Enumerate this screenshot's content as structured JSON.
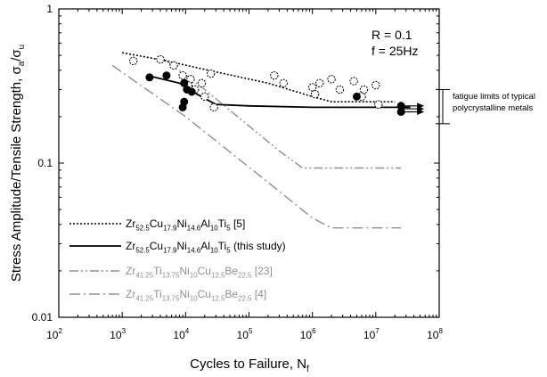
{
  "chart_data": {
    "type": "scatter",
    "xlabel": "Cycles to Failure, N",
    "xlabel_sub": "f",
    "ylabel_parts": [
      {
        "t": "Stress Amplitude/Tensile Strength, σ"
      },
      {
        "t": "a",
        "sub": true
      },
      {
        "t": "/σ"
      },
      {
        "t": "u",
        "sub": true
      }
    ],
    "xscale": "log",
    "yscale": "log",
    "xlim": [
      100,
      100000000
    ],
    "ylim": [
      0.01,
      1
    ],
    "x_ticks": [
      {
        "value": 100,
        "base": "10",
        "exp": "2"
      },
      {
        "value": 1000,
        "base": "10",
        "exp": "3"
      },
      {
        "value": 10000,
        "base": "10",
        "exp": "4"
      },
      {
        "value": 100000,
        "base": "10",
        "exp": "5"
      },
      {
        "value": 1000000,
        "base": "10",
        "exp": "6"
      },
      {
        "value": 10000000,
        "base": "10",
        "exp": "7"
      },
      {
        "value": 100000000,
        "base": "10",
        "exp": "8"
      }
    ],
    "y_ticks": [
      {
        "value": 0.01,
        "label": "0.01"
      },
      {
        "value": 0.1,
        "label": "0.1"
      },
      {
        "value": 1,
        "label": "1"
      }
    ],
    "conditions": [
      "R = 0.1",
      "f = 25Hz"
    ],
    "annotation": {
      "lines": [
        "fatigue limits of typical",
        "polycrystalline metals"
      ],
      "range": [
        0.18,
        0.3
      ]
    },
    "series": [
      {
        "id": "prior",
        "legend": [
          {
            "t": "Zr"
          },
          {
            "t": "52.5",
            "sub": true
          },
          {
            "t": "Cu"
          },
          {
            "t": "17.9",
            "sub": true
          },
          {
            "t": "Ni"
          },
          {
            "t": "14.6",
            "sub": true
          },
          {
            "t": "Al"
          },
          {
            "t": "10",
            "sub": true
          },
          {
            "t": "Ti"
          },
          {
            "t": "5",
            "sub": true
          },
          {
            "t": " [5]"
          }
        ],
        "color": "#000000",
        "style": "dotted",
        "marker": "open-circle",
        "curve": [
          [
            1000,
            0.52
          ],
          [
            5000,
            0.46
          ],
          [
            30000,
            0.39
          ],
          [
            200000,
            0.33
          ],
          [
            1000000,
            0.27
          ],
          [
            2000000,
            0.25
          ],
          [
            20000000,
            0.25
          ]
        ],
        "points": [
          [
            1500,
            0.46
          ],
          [
            4000,
            0.47
          ],
          [
            6500,
            0.43
          ],
          [
            9000,
            0.37
          ],
          [
            12000,
            0.35
          ],
          [
            11000,
            0.32
          ],
          [
            14000,
            0.3
          ],
          [
            18000,
            0.33
          ],
          [
            25000,
            0.38
          ],
          [
            20000,
            0.27
          ],
          [
            28000,
            0.23
          ],
          [
            250000,
            0.37
          ],
          [
            350000,
            0.33
          ],
          [
            1000000,
            0.31
          ],
          [
            1300000,
            0.33
          ],
          [
            1100000,
            0.28
          ],
          [
            2000000,
            0.35
          ],
          [
            2700000,
            0.3
          ],
          [
            4500000,
            0.34
          ],
          [
            6500000,
            0.3
          ],
          [
            6000000,
            0.27
          ],
          [
            10000000,
            0.32
          ],
          [
            11000000,
            0.24
          ]
        ]
      },
      {
        "id": "this-study",
        "legend": [
          {
            "t": "Zr"
          },
          {
            "t": "52.5",
            "sub": true
          },
          {
            "t": "Cu"
          },
          {
            "t": "17.9",
            "sub": true
          },
          {
            "t": "Ni"
          },
          {
            "t": "14.6",
            "sub": true
          },
          {
            "t": "Al"
          },
          {
            "t": "10",
            "sub": true
          },
          {
            "t": "Ti"
          },
          {
            "t": "5",
            "sub": true
          },
          {
            "t": " (this study)"
          }
        ],
        "color": "#000000",
        "style": "solid",
        "marker": "filled-circle",
        "curve": [
          [
            2500,
            0.37
          ],
          [
            8000,
            0.33
          ],
          [
            15000,
            0.28
          ],
          [
            30000,
            0.24
          ],
          [
            100000,
            0.235
          ],
          [
            1000000,
            0.23
          ],
          [
            35000000,
            0.23
          ]
        ],
        "points": [
          [
            2700,
            0.36
          ],
          [
            5000,
            0.37
          ],
          [
            9500,
            0.33
          ],
          [
            10500,
            0.3
          ],
          [
            12500,
            0.29
          ],
          [
            9000,
            0.23
          ],
          [
            9500,
            0.25
          ],
          [
            5000000,
            0.27
          ],
          [
            25000000,
            0.215
          ],
          [
            25000000,
            0.235
          ]
        ],
        "runout_x": 25000000
      },
      {
        "id": "zr41-23",
        "legend": [
          {
            "t": "Zr"
          },
          {
            "t": "41.25",
            "sub": true
          },
          {
            "t": "Ti"
          },
          {
            "t": "13.75",
            "sub": true
          },
          {
            "t": "Ni"
          },
          {
            "t": "10",
            "sub": true
          },
          {
            "t": "Cu"
          },
          {
            "t": "12.5",
            "sub": true
          },
          {
            "t": "Be"
          },
          {
            "t": "22.5",
            "sub": true
          },
          {
            "t": " [23]"
          }
        ],
        "color": "#909090",
        "style": "dash-dot-dot",
        "curve": [
          [
            5000,
            0.46
          ],
          [
            20000,
            0.3
          ],
          [
            300000,
            0.12
          ],
          [
            700000,
            0.093
          ],
          [
            25000000,
            0.093
          ]
        ]
      },
      {
        "id": "zr41-4",
        "legend": [
          {
            "t": "Zr"
          },
          {
            "t": "41.25",
            "sub": true
          },
          {
            "t": "Ti"
          },
          {
            "t": "13.75",
            "sub": true
          },
          {
            "t": "Ni"
          },
          {
            "t": "10",
            "sub": true
          },
          {
            "t": "Cu"
          },
          {
            "t": "12.5",
            "sub": true
          },
          {
            "t": "Be"
          },
          {
            "t": "22.5",
            "sub": true
          },
          {
            "t": " [4]"
          }
        ],
        "color": "#909090",
        "style": "dash-dot",
        "curve": [
          [
            700,
            0.43
          ],
          [
            10000,
            0.2
          ],
          [
            200000,
            0.075
          ],
          [
            1000000,
            0.044
          ],
          [
            2000000,
            0.038
          ],
          [
            25000000,
            0.038
          ]
        ]
      }
    ]
  }
}
